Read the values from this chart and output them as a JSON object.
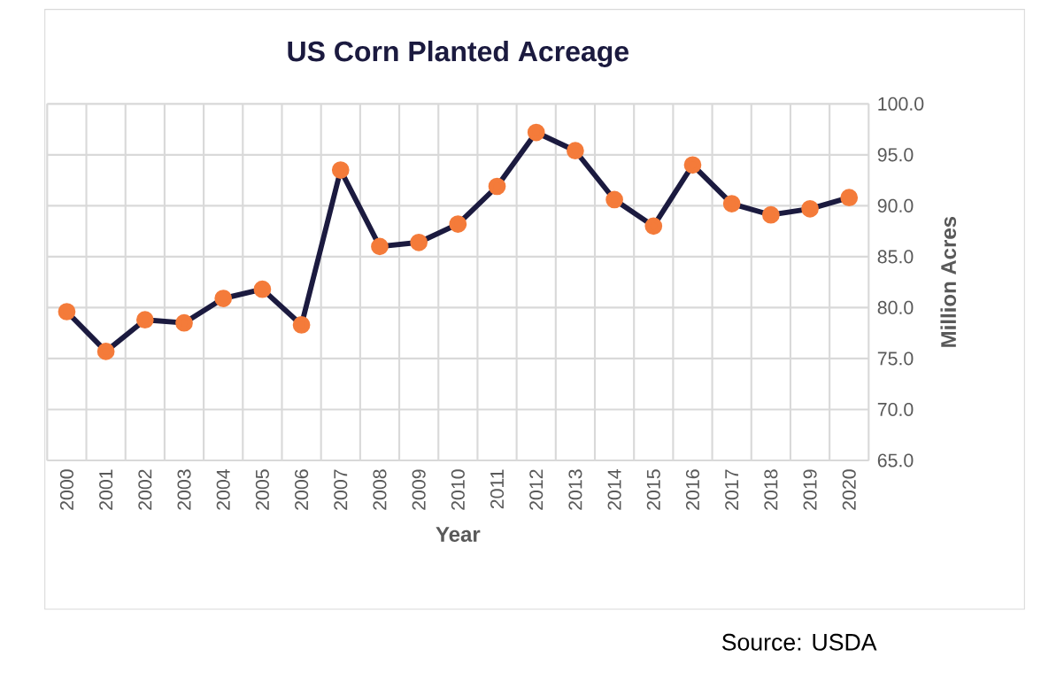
{
  "chart_data": {
    "type": "line",
    "title": "US Corn Planted Acreage",
    "xlabel": "Year",
    "ylabel": "Million Acres",
    "categories": [
      "2000",
      "2001",
      "2002",
      "2003",
      "2004",
      "2005",
      "2006",
      "2007",
      "2008",
      "2009",
      "2010",
      "2011",
      "2012",
      "2013",
      "2014",
      "2015",
      "2016",
      "2017",
      "2018",
      "2019",
      "2020"
    ],
    "series": [
      {
        "color": "#1b1a3f",
        "values": [
          79.6,
          75.7,
          78.8,
          78.5,
          80.9,
          81.8,
          78.3,
          93.5,
          86.0,
          86.4,
          88.2,
          91.9,
          97.2,
          95.4,
          90.6,
          88.0,
          94.0,
          90.2,
          89.1,
          89.7,
          90.8
        ]
      }
    ],
    "marker": "circle",
    "line_style": "solid",
    "ylim": [
      65,
      100
    ],
    "yticks": [
      {
        "value": 65,
        "label": "65.0"
      },
      {
        "value": 70,
        "label": "70.0"
      },
      {
        "value": 75,
        "label": "75.0"
      },
      {
        "value": 80,
        "label": "80.0"
      },
      {
        "value": 85,
        "label": "85.0"
      },
      {
        "value": 90,
        "label": "90.0"
      },
      {
        "value": 95,
        "label": "95.0"
      },
      {
        "value": 100,
        "label": "100.0"
      }
    ],
    "grid": true,
    "annotations": [
      "Source:  USDA"
    ]
  }
}
